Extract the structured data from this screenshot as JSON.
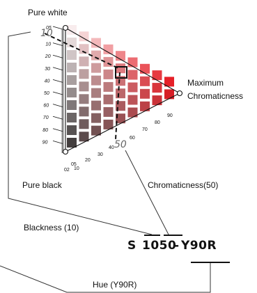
{
  "labels": {
    "pure_white": "Pure white",
    "pure_black": "Pure black",
    "maximum": "Maximum",
    "chromaticness": "Chromaticness",
    "chromaticness_50": "Chromaticness(50)",
    "blackness_10": "Blackness (10)",
    "hue_y90r": "Hue (Y90R)"
  },
  "highlight": {
    "blackness_value": "10",
    "chromaticness_value": "50"
  },
  "notation": {
    "prefix": "S",
    "nuance": "1050",
    "hue": "Y90R"
  },
  "blackness_ticks": [
    "05",
    "10",
    "20",
    "30",
    "40",
    "50",
    "60",
    "70",
    "80",
    "90"
  ],
  "chromaticness_ticks": [
    "02",
    "05",
    "10",
    "20",
    "30",
    "40",
    "60",
    "70",
    "80",
    "90"
  ],
  "colors": {
    "hue_red": "#e8131c",
    "dark_red": "#5a0f12",
    "gray_shadow": "#555555"
  }
}
